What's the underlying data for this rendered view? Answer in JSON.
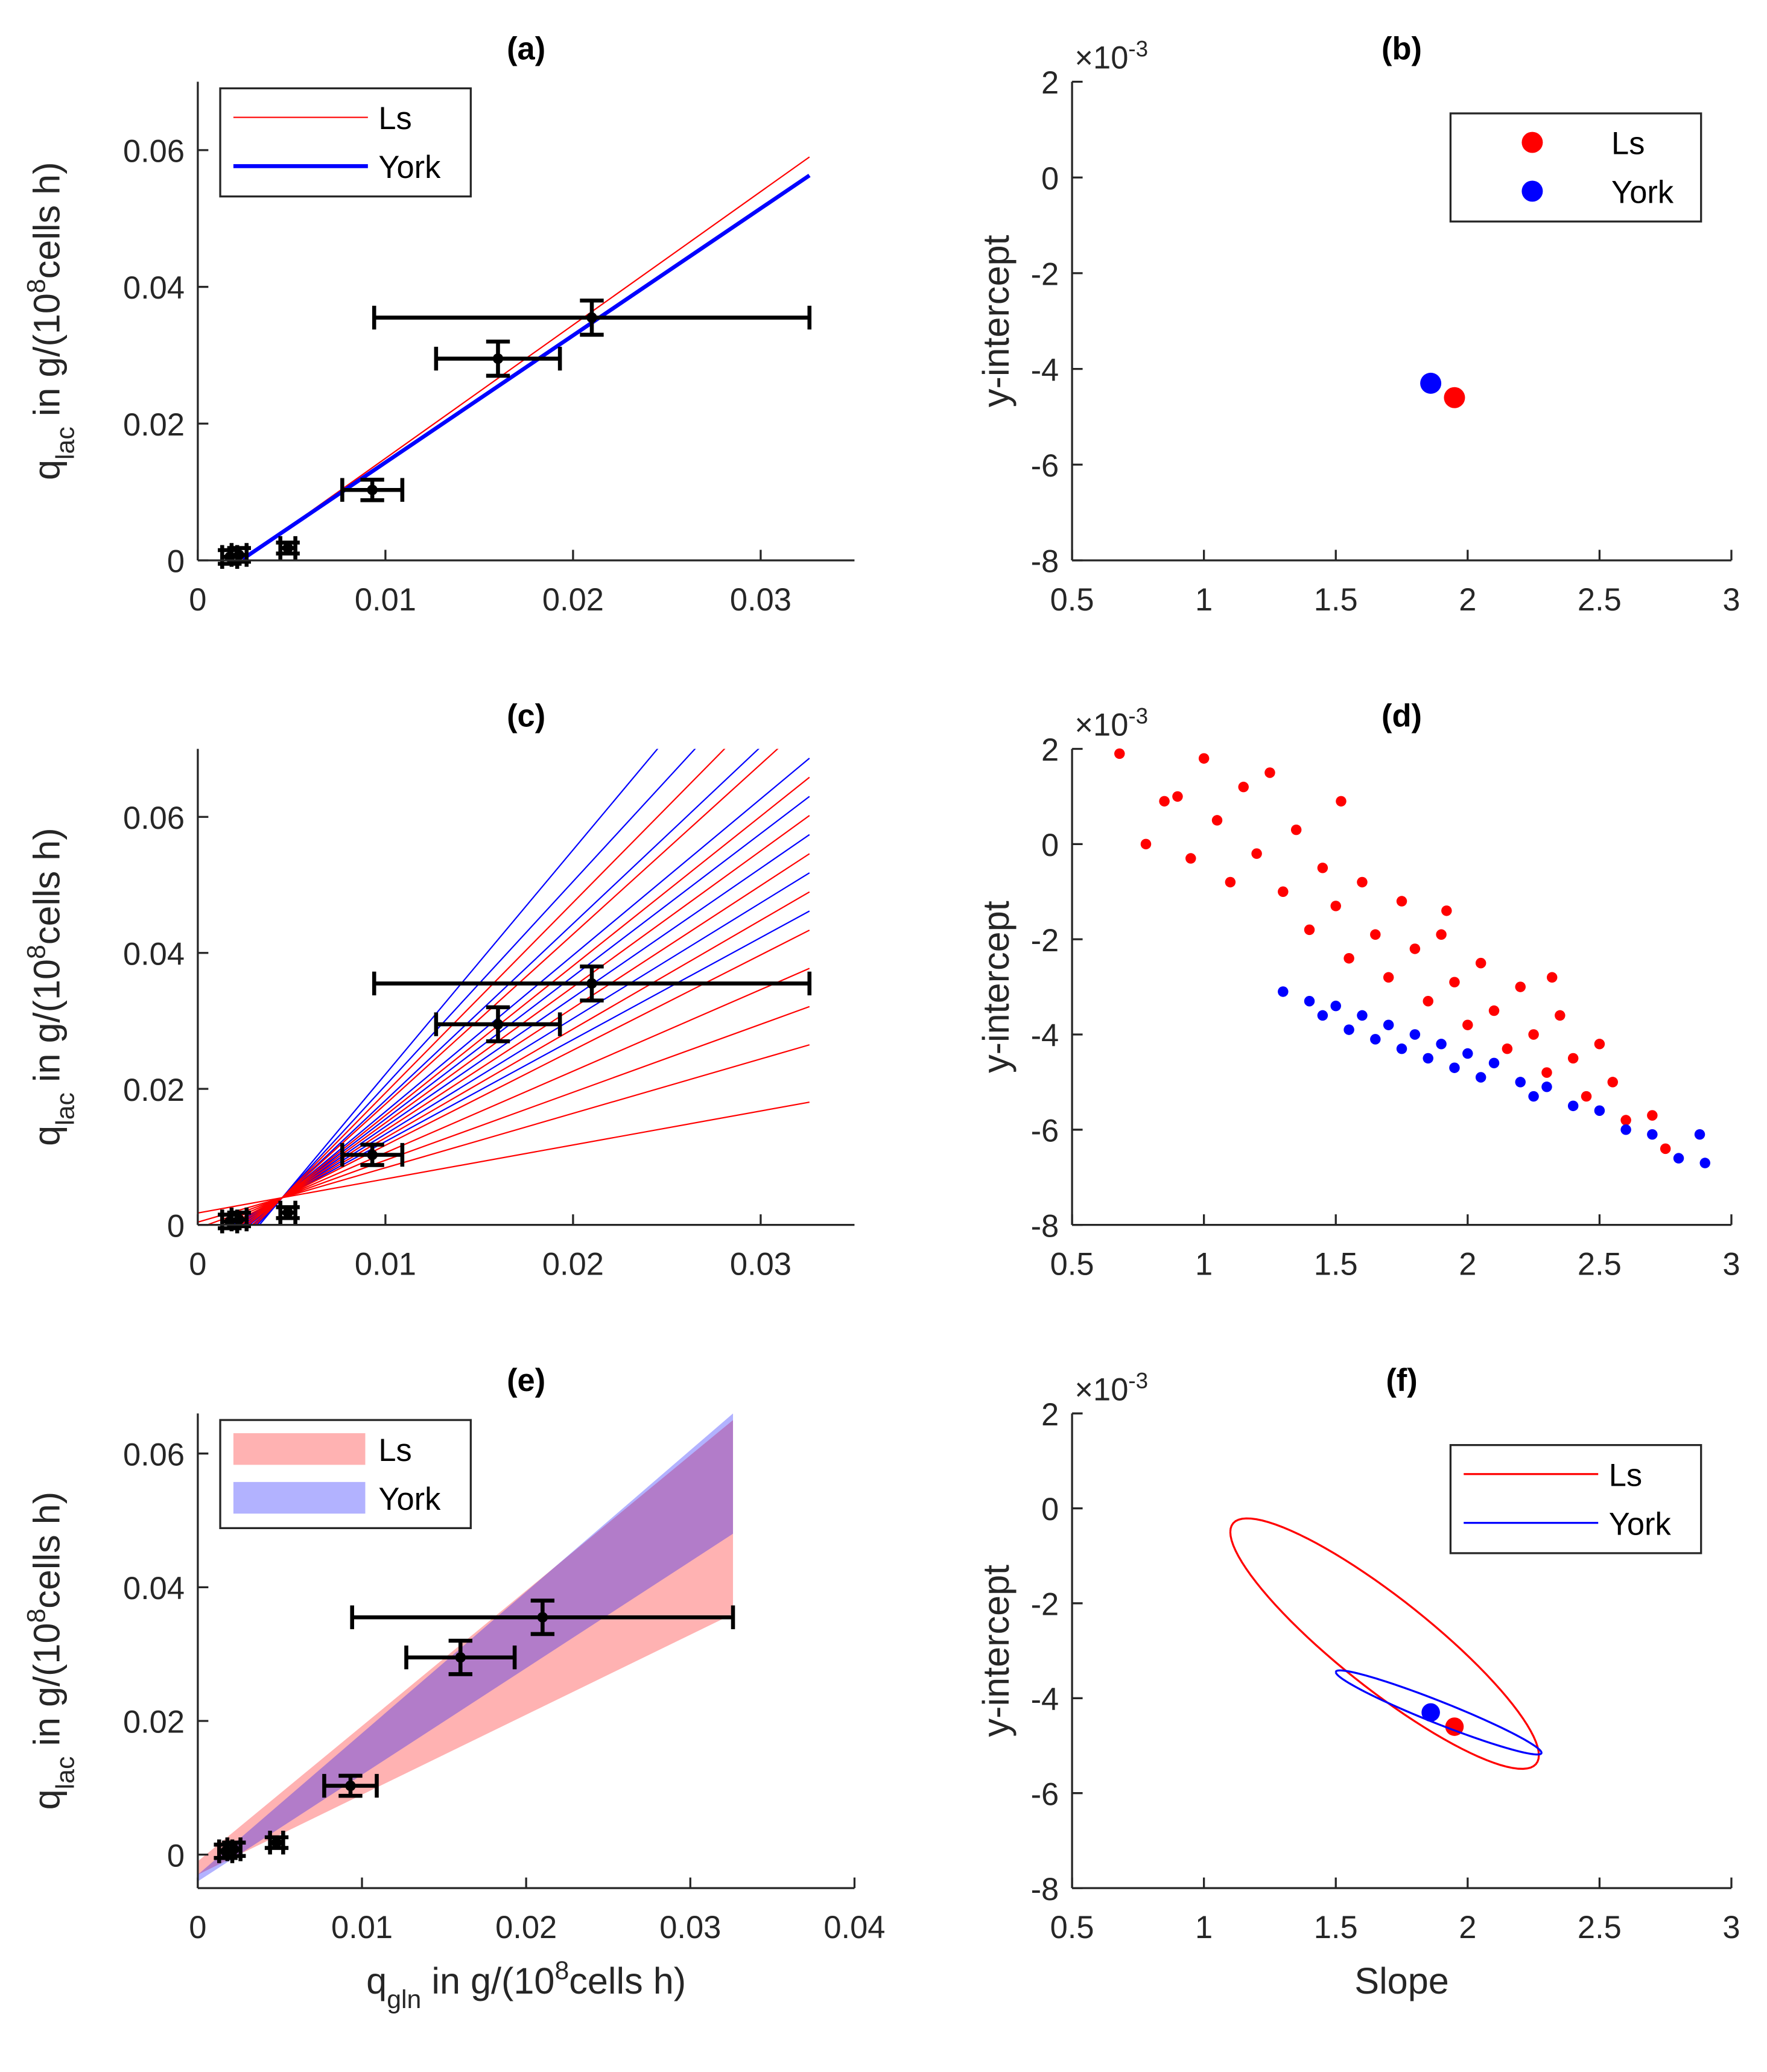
{
  "chart_data": [
    {
      "type": "line",
      "title": "(a)",
      "ylabel": [
        {
          "text": "q"
        },
        {
          "text": "lac",
          "sub": true
        },
        {
          "text": " in g/(10"
        },
        {
          "text": "8",
          "sup": true
        },
        {
          "text": "cells h)"
        }
      ],
      "xlim": [
        0,
        0.035
      ],
      "xticks": [
        0,
        0.01,
        0.02,
        0.03
      ],
      "ylim": [
        0,
        0.07
      ],
      "yticks": [
        0,
        0.02,
        0.04,
        0.06
      ],
      "legend": "northwest",
      "series": [
        {
          "name": "Ls",
          "color": "#ff0000",
          "width": 1,
          "x": [
            0.0024,
            0.0326
          ],
          "values": [
            0.0001,
            0.059
          ]
        },
        {
          "name": "York",
          "color": "#0000ff",
          "width": 3,
          "x": [
            0.0024,
            0.0326
          ],
          "values": [
            0.0002,
            0.0563
          ]
        }
      ],
      "errorbars": {
        "x": [
          0.0017,
          0.0022,
          0.0048,
          0.0093,
          0.016,
          0.021
        ],
        "values": [
          0.0005,
          0.0008,
          0.0018,
          0.0103,
          0.0295,
          0.0355
        ],
        "xerr": [
          0.0004,
          0.0004,
          0.0004,
          0.0016,
          0.0033,
          0.0116
        ],
        "yerr": [
          0.001,
          0.001,
          0.0008,
          0.0015,
          0.0025,
          0.0025
        ]
      }
    },
    {
      "type": "scatter",
      "title": "(b)",
      "ylabel": [
        {
          "text": "y-intercept"
        }
      ],
      "yexponent": [
        {
          "text": "×10"
        },
        {
          "text": "-3",
          "sup": true
        }
      ],
      "xlim": [
        0.5,
        3
      ],
      "xticks": [
        0.5,
        1,
        1.5,
        2,
        2.5,
        3
      ],
      "ylim": [
        -8,
        2
      ],
      "yticks": [
        -8,
        -6,
        -4,
        -2,
        0,
        2
      ],
      "legend": "northeast",
      "series": [
        {
          "name": "Ls",
          "color": "#ff0000",
          "marker_size": 8,
          "x": [
            1.95
          ],
          "values": [
            -4.6
          ]
        },
        {
          "name": "York",
          "color": "#0000ff",
          "marker_size": 8,
          "x": [
            1.86
          ],
          "values": [
            -4.3
          ]
        }
      ]
    },
    {
      "type": "line",
      "title": "(c)",
      "ylabel": [
        {
          "text": "q"
        },
        {
          "text": "lac",
          "sub": true
        },
        {
          "text": " in g/(10"
        },
        {
          "text": "8",
          "sup": true
        },
        {
          "text": "cells h)"
        }
      ],
      "xlim": [
        0,
        0.035
      ],
      "xticks": [
        0,
        0.01,
        0.02,
        0.03
      ],
      "ylim": [
        0,
        0.07
      ],
      "yticks": [
        0,
        0.02,
        0.04,
        0.06
      ],
      "series": [
        {
          "color": "#0000ff",
          "width": 1,
          "x": [
            0,
            0.0326
          ],
          "lines": [
            [
              -0.00275,
              0.04615
            ],
            [
              -0.00365,
              0.05177
            ],
            [
              -0.00455,
              0.05739
            ],
            [
              -0.00545,
              0.06301
            ],
            [
              -0.00635,
              0.06863
            ],
            [
              -0.0077,
              0.07706
            ],
            [
              -0.0095,
              0.0883
            ],
            [
              -0.01085,
              0.09673
            ]
          ]
        },
        {
          "color": "#ff0000",
          "width": 1,
          "x": [
            0,
            0.0326
          ],
          "lines": [
            [
              0.00175,
              0.01805
            ],
            [
              0.0004,
              0.02648
            ],
            [
              -0.0005,
              0.0321
            ],
            [
              -0.0014,
              0.03772
            ],
            [
              -0.0023,
              0.04334
            ],
            [
              -0.0032,
              0.04896
            ],
            [
              -0.0041,
              0.05458
            ],
            [
              -0.005,
              0.0602
            ],
            [
              -0.0059,
              0.06582
            ],
            [
              -0.00725,
              0.07425
            ],
            [
              -0.0086,
              0.08268
            ]
          ]
        }
      ],
      "errorbars": {
        "x": [
          0.0017,
          0.0022,
          0.0048,
          0.0093,
          0.016,
          0.021
        ],
        "values": [
          0.0005,
          0.0008,
          0.0018,
          0.0103,
          0.0295,
          0.0355
        ],
        "xerr": [
          0.0004,
          0.0004,
          0.0004,
          0.0016,
          0.0033,
          0.0116
        ],
        "yerr": [
          0.001,
          0.001,
          0.0008,
          0.0015,
          0.0025,
          0.0025
        ]
      }
    },
    {
      "type": "scatter",
      "title": "(d)",
      "ylabel": [
        {
          "text": "y-intercept"
        }
      ],
      "yexponent": [
        {
          "text": "×10"
        },
        {
          "text": "-3",
          "sup": true
        }
      ],
      "xlim": [
        0.5,
        3
      ],
      "xticks": [
        0.5,
        1,
        1.5,
        2,
        2.5,
        3
      ],
      "ylim": [
        -8,
        2
      ],
      "yticks": [
        -8,
        -6,
        -4,
        -2,
        0,
        2
      ],
      "series": [
        {
          "color": "#ff0000",
          "marker_size": 4,
          "x": [
            0.68,
            0.78,
            0.85,
            0.9,
            0.95,
            1.0,
            1.05,
            1.1,
            1.15,
            1.2,
            1.25,
            1.3,
            1.35,
            1.4,
            1.45,
            1.5,
            1.55,
            1.6,
            1.65,
            1.7,
            1.75,
            1.8,
            1.85,
            1.9,
            1.95,
            2.0,
            2.05,
            2.1,
            2.15,
            2.2,
            2.25,
            2.3,
            2.35,
            2.4,
            2.45,
            2.5,
            2.55,
            2.6,
            2.7,
            2.75,
            1.52,
            1.92,
            2.32
          ],
          "values": [
            1.9,
            0,
            0.9,
            1.0,
            -0.3,
            1.8,
            0.5,
            -0.8,
            1.2,
            -0.2,
            1.5,
            -1.0,
            0.3,
            -1.8,
            -0.5,
            -1.3,
            -2.4,
            -0.8,
            -1.9,
            -2.8,
            -1.2,
            -2.2,
            -3.3,
            -1.9,
            -2.9,
            -3.8,
            -2.5,
            -3.5,
            -4.3,
            -3.0,
            -4.0,
            -4.8,
            -3.6,
            -4.5,
            -5.3,
            -4.2,
            -5.0,
            -5.8,
            -5.7,
            -6.4,
            0.9,
            -1.4,
            -2.8
          ]
        },
        {
          "color": "#0000ff",
          "marker_size": 4,
          "x": [
            1.3,
            1.4,
            1.45,
            1.5,
            1.55,
            1.6,
            1.65,
            1.7,
            1.75,
            1.8,
            1.85,
            1.9,
            1.95,
            2.0,
            2.05,
            2.1,
            2.2,
            2.25,
            2.3,
            2.4,
            2.5,
            2.6,
            2.7,
            2.8,
            2.88,
            2.9
          ],
          "values": [
            -3.1,
            -3.3,
            -3.6,
            -3.4,
            -3.9,
            -3.6,
            -4.1,
            -3.8,
            -4.3,
            -4.0,
            -4.5,
            -4.2,
            -4.7,
            -4.4,
            -4.9,
            -4.6,
            -5.0,
            -5.3,
            -5.1,
            -5.5,
            -5.6,
            -6.0,
            -6.1,
            -6.6,
            -6.1,
            -6.7
          ]
        }
      ]
    },
    {
      "type": "band",
      "title": "(e)",
      "ylabel": [
        {
          "text": "q"
        },
        {
          "text": "lac",
          "sub": true
        },
        {
          "text": " in g/(10"
        },
        {
          "text": "8",
          "sup": true
        },
        {
          "text": "cells h)"
        }
      ],
      "xlabel": [
        {
          "text": "q"
        },
        {
          "text": "gln",
          "sub": true
        },
        {
          "text": " in g/(10"
        },
        {
          "text": "8",
          "sup": true
        },
        {
          "text": "cells h)"
        }
      ],
      "xlim": [
        0,
        0.04
      ],
      "xticks": [
        0,
        0.01,
        0.02,
        0.03,
        0.04
      ],
      "ylim": [
        -0.005,
        0.066
      ],
      "yticks": [
        0,
        0.02,
        0.04,
        0.06
      ],
      "legend": "northwest",
      "series": [
        {
          "name": "Ls",
          "color": "#ff0000",
          "alpha": 0.3,
          "x": [
            0,
            0.0326
          ],
          "lower": [
            -0.003,
            0.036
          ],
          "upper": [
            -0.001,
            0.065
          ]
        },
        {
          "name": "York",
          "color": "#0000ff",
          "alpha": 0.3,
          "x": [
            0,
            0.0326
          ],
          "lower": [
            -0.004,
            0.048
          ],
          "upper": [
            -0.003,
            0.066
          ]
        }
      ],
      "errorbars": {
        "x": [
          0.0017,
          0.0022,
          0.0048,
          0.0093,
          0.016,
          0.021
        ],
        "values": [
          0.0005,
          0.0008,
          0.0018,
          0.0103,
          0.0295,
          0.0355
        ],
        "xerr": [
          0.0004,
          0.0004,
          0.0004,
          0.0016,
          0.0033,
          0.0116
        ],
        "yerr": [
          0.001,
          0.001,
          0.0008,
          0.0015,
          0.0025,
          0.0025
        ]
      }
    },
    {
      "type": "ellipse",
      "title": "(f)",
      "ylabel": [
        {
          "text": "y-intercept"
        }
      ],
      "xlabel": [
        {
          "text": "Slope"
        }
      ],
      "yexponent": [
        {
          "text": "×10"
        },
        {
          "text": "-3",
          "sup": true
        }
      ],
      "xlim": [
        0.5,
        3
      ],
      "xticks": [
        0.5,
        1,
        1.5,
        2,
        2.5,
        3
      ],
      "ylim": [
        -8,
        2
      ],
      "yticks": [
        -8,
        -6,
        -4,
        -2,
        0,
        2
      ],
      "legend": "northeast",
      "series": [
        {
          "name": "Ls",
          "color": "#ff0000",
          "center": [
            1.685,
            -2.85
          ],
          "u": [
            -0.585,
            2.35
          ],
          "v": [
            0,
            1.2
          ],
          "x": [
            1.95
          ],
          "values": [
            -4.6
          ]
        },
        {
          "name": "York",
          "color": "#0000ff",
          "center": [
            1.89,
            -4.3
          ],
          "u": [
            -0.39,
            0.85
          ],
          "v": [
            0,
            0.25
          ],
          "x": [
            1.86
          ],
          "values": [
            -4.3
          ]
        }
      ]
    }
  ]
}
